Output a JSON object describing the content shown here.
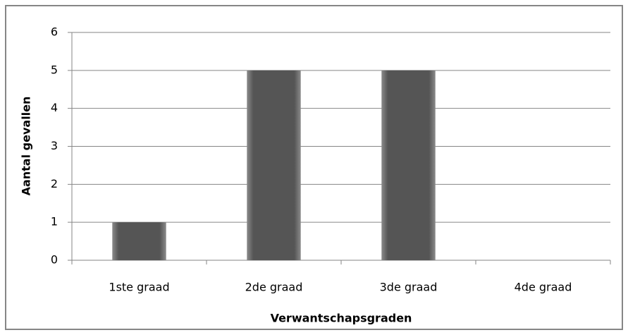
{
  "chart_data": {
    "type": "bar",
    "x_label": "Verwantschapsgraden",
    "y_label": "Aantal gevallen",
    "categories": [
      "1ste graad",
      "2de graad",
      "3de graad",
      "4de graad"
    ],
    "values": [
      1,
      5,
      5,
      0
    ],
    "color": "#555555",
    "ylim": [
      0,
      6
    ],
    "yticks": [
      0,
      1,
      2,
      3,
      4,
      5,
      6
    ],
    "grid": true
  }
}
